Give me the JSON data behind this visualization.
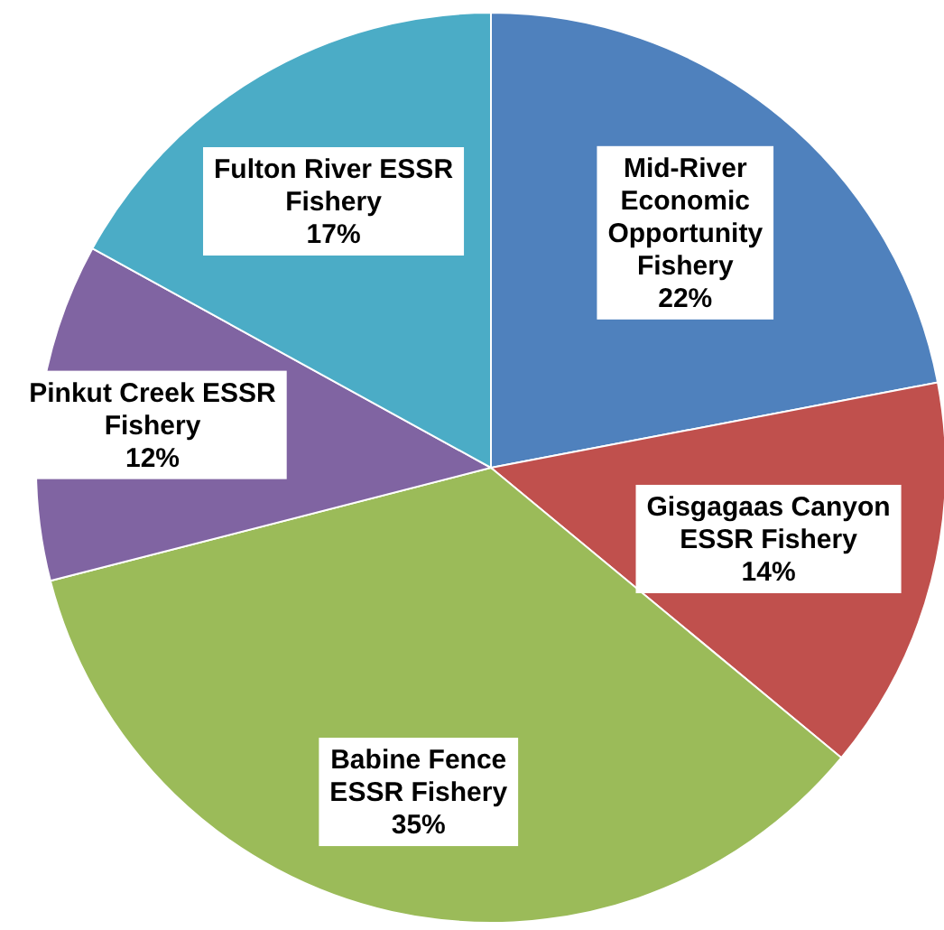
{
  "chart_data": {
    "type": "pie",
    "categories": [
      "Mid-River Economic Opportunity Fishery",
      "Gisgagaas Canyon ESSR Fishery",
      "Babine Fence ESSR Fishery",
      "Pinkut Creek ESSR Fishery",
      "Fulton River ESSR Fishery"
    ],
    "values": [
      22,
      14,
      35,
      12,
      17
    ],
    "colors": [
      "#4f81bd",
      "#c0504d",
      "#9bbb59",
      "#8064a2",
      "#4bacc6"
    ],
    "value_labels": [
      "22%",
      "14%",
      "35%",
      "12%",
      "17%"
    ]
  }
}
